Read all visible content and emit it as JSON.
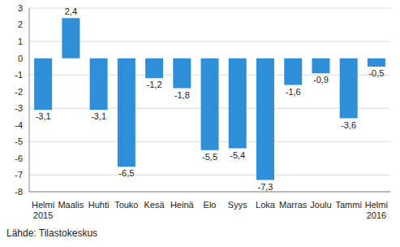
{
  "chart_data": {
    "type": "bar",
    "categories": [
      "Helmi 2015",
      "Maalis",
      "Huhti",
      "Touko",
      "Kesä",
      "Heinä",
      "Elo",
      "Syys",
      "Loka",
      "Marras",
      "Joulu",
      "Tammi",
      "Helmi 2016"
    ],
    "values": [
      -3.1,
      2.4,
      -3.1,
      -6.5,
      -1.2,
      -1.8,
      -5.5,
      -5.4,
      -7.3,
      -1.6,
      -0.9,
      -3.6,
      -0.5
    ],
    "value_labels": [
      "-3,1",
      "2,4",
      "-3,1",
      "-6,5",
      "-1,2",
      "-1,8",
      "-5,5",
      "-5,4",
      "-7,3",
      "-1,6",
      "-0,9",
      "-3,6",
      "-0,5"
    ],
    "data_labels": true,
    "color": "#2e8fd8",
    "ylim": [
      -8,
      3
    ],
    "yticks": [
      -8,
      -7,
      -6,
      -5,
      -4,
      -3,
      -2,
      -1,
      0,
      1,
      2,
      3
    ],
    "grid": true,
    "source": "Lähde: Tilastokeskus"
  }
}
